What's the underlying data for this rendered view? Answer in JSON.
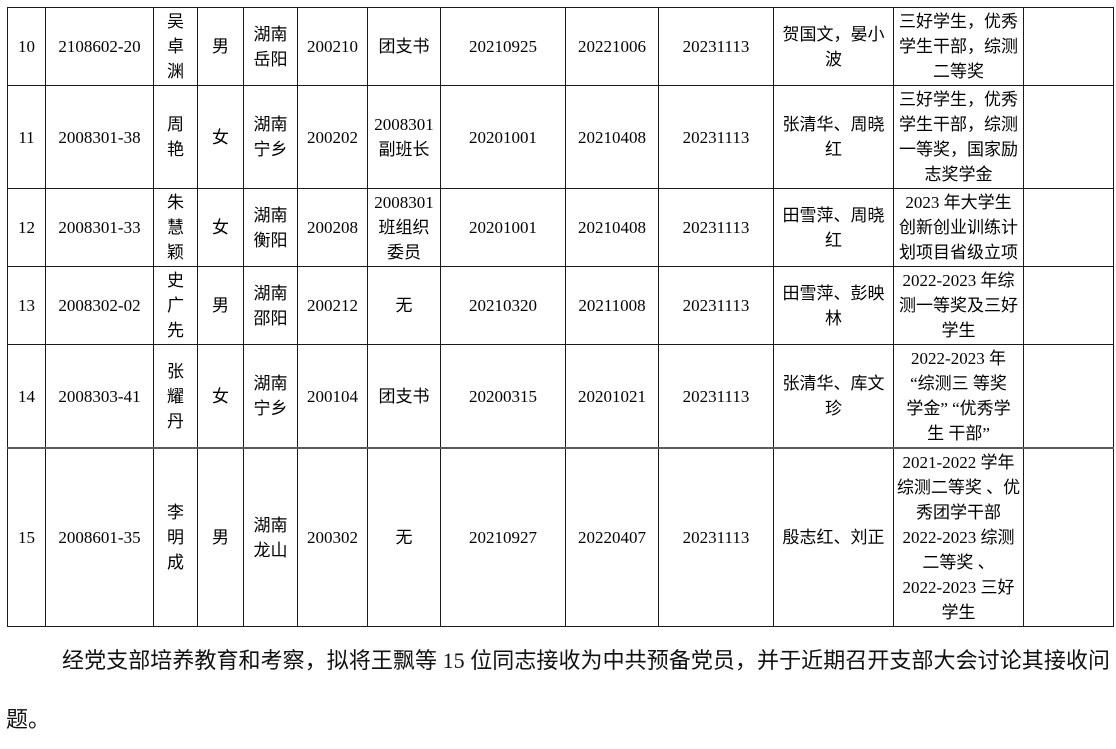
{
  "page": {
    "background": "#ffffff",
    "border_color": "#1a1a1a",
    "text_color": "#000000"
  },
  "table": {
    "visible_row_numbers": [
      "10",
      "11",
      "12",
      "13",
      "14",
      "15"
    ],
    "rows": [
      [
        "10",
        "2108602-20",
        "吴\n卓\n渊",
        "男",
        "湖南\n岳阳",
        "200210",
        "团支书",
        "20210925",
        "20221006",
        "20231113",
        "贺国文，晏小\n波",
        "三好学生，优秀\n学生干部，综测\n二等奖",
        ""
      ],
      [
        "11",
        "2008301-38",
        "周\n艳",
        "女",
        "湖南\n宁乡",
        "200202",
        "2008301\n副班长",
        "20201001",
        "20210408",
        "20231113",
        "张清华、周晓\n红",
        "三好学生，优秀\n学生干部，综测\n一等奖，国家励\n志奖学金",
        ""
      ],
      [
        "12",
        "2008301-33",
        "朱\n慧\n颖",
        "女",
        "湖南\n衡阳",
        "200208",
        "2008301\n班组织\n委员",
        "20201001",
        "20210408",
        "20231113",
        "田雪萍、周晓\n红",
        "2023 年大学生\n创新创业训练计\n划项目省级立项",
        ""
      ],
      [
        "13",
        "2008302-02",
        "史\n广\n先",
        "男",
        "湖南\n邵阳",
        "200212",
        "无",
        "20210320",
        "20211008",
        "20231113",
        "田雪萍、彭映\n林",
        "2022-2023 年综\n测一等奖及三好\n学生",
        ""
      ],
      [
        "14",
        "2008303-41",
        "张\n耀\n丹",
        "女",
        "湖南\n宁乡",
        "200104",
        "团支书",
        "20200315",
        "20201021",
        "20231113",
        "张清华、库文\n珍",
        "2022-2023 年\n“综测三 等奖\n学金” “优秀学\n生 干部”",
        ""
      ],
      [
        "15",
        "2008601-35",
        "李\n明\n成",
        "男",
        "湖南\n龙山",
        "200302",
        "无",
        "20210927",
        "20220407",
        "20231113",
        "殷志红、刘正",
        "2021-2022 学年\n综测二等奖 、优\n秀团学干部\n2022-2023 综测\n二等奖 、\n2022-2023 三好\n学生",
        ""
      ]
    ]
  },
  "footer": {
    "paragraph": "经党支部培养教育和考察，拟将王飘等 15 位同志接收为中共预备党员，并于近期召开支部大会讨论其接收问题。"
  }
}
